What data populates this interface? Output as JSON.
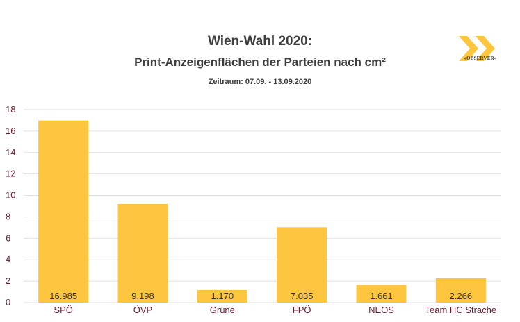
{
  "chart_data": {
    "type": "bar",
    "title": "Wien-Wahl 2020:",
    "subtitle": "Print-Anzeigenflächen der Parteien nach cm²",
    "note": "Zeitraum: 07.09. - 13.09.2020",
    "categories": [
      "SPÖ",
      "ÖVP",
      "Grüne",
      "FPÖ",
      "NEOS",
      "Team HC Strache"
    ],
    "values": [
      16.985,
      9.198,
      1.17,
      7.035,
      1.661,
      2.266
    ],
    "data_labels": [
      "16.985",
      "9.198",
      "1.170",
      "7.035",
      "1.661",
      "2.266"
    ],
    "ylim": [
      0,
      18
    ],
    "yticks": [
      0,
      2,
      4,
      6,
      8,
      10,
      12,
      14,
      16,
      18
    ],
    "grid": true,
    "bar_color": "#fec53f",
    "axis_text_color": "#6b1a2e"
  },
  "logo": {
    "text": "»OBSERVER«",
    "color": "#fec53f"
  }
}
